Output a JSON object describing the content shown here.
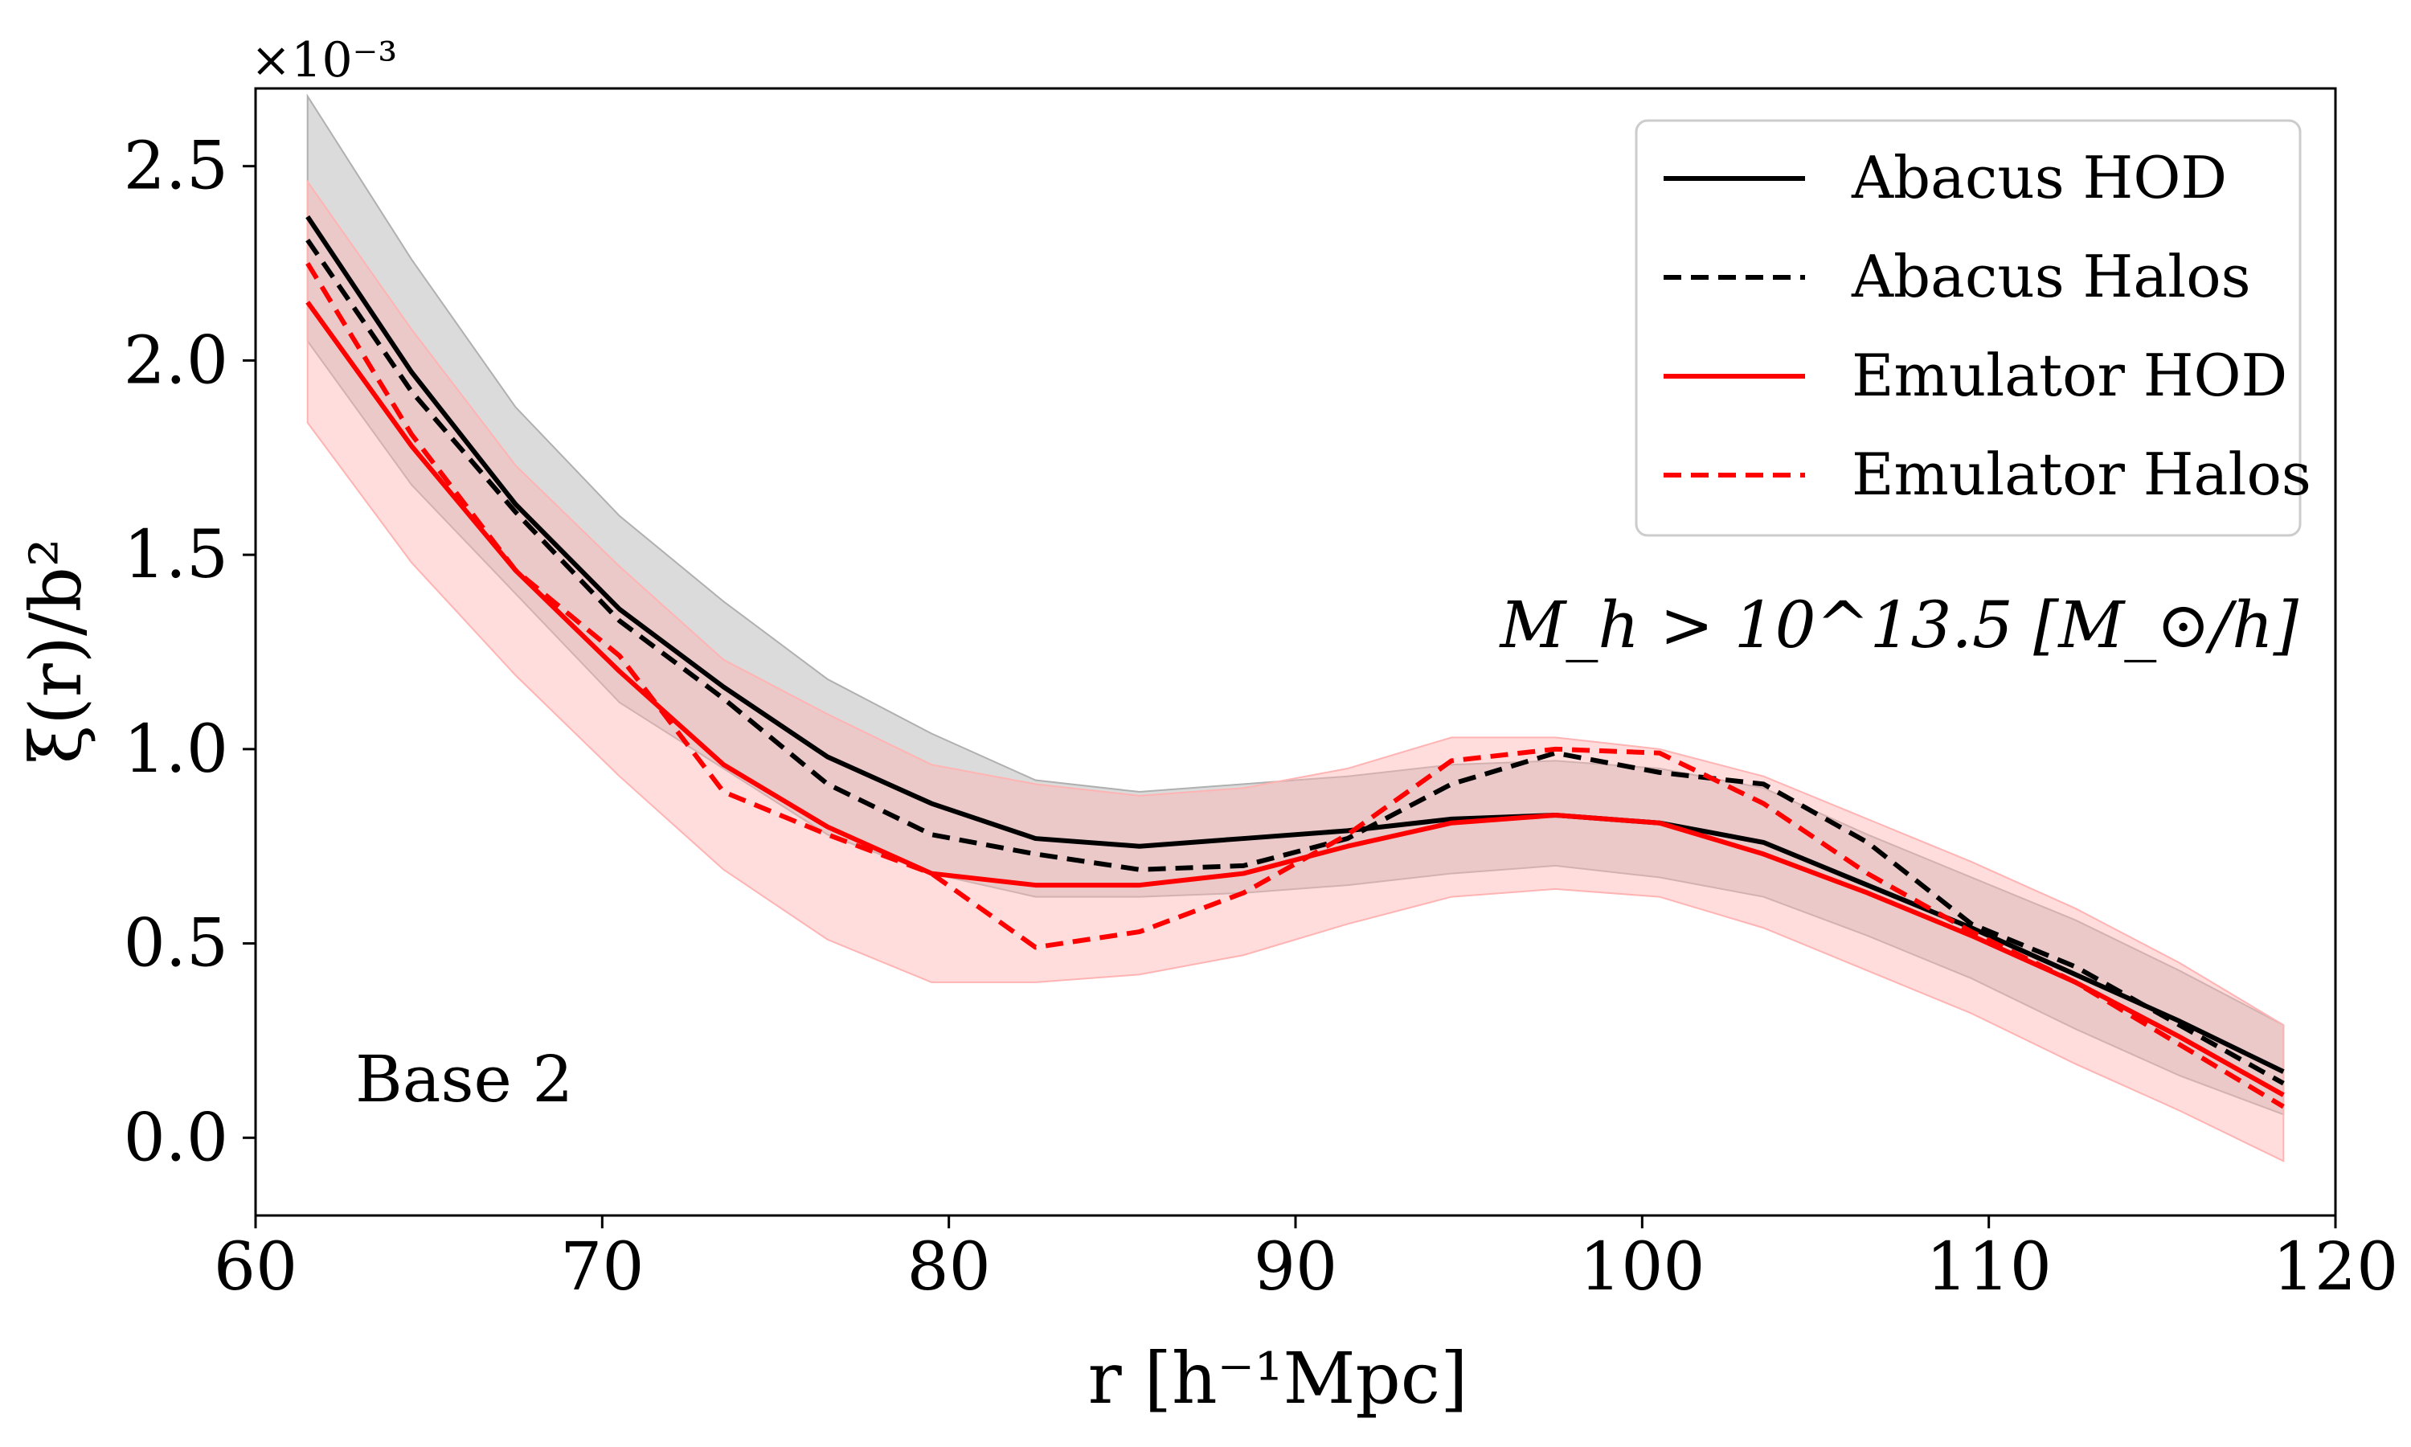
{
  "chart_data": {
    "type": "line",
    "xlabel": "r [h⁻¹Mpc]",
    "ylabel": "ξ(r)/b²",
    "y_scale_label": "×10⁻³",
    "xlim": [
      60,
      120
    ],
    "ylim": [
      -0.2,
      2.7
    ],
    "xticks": [
      60,
      70,
      80,
      90,
      100,
      110,
      120
    ],
    "xtick_labels": [
      "60",
      "70",
      "80",
      "90",
      "100",
      "110",
      "120"
    ],
    "yticks": [
      0.0,
      0.5,
      1.0,
      1.5,
      2.0,
      2.5
    ],
    "ytick_labels": [
      "0.0",
      "0.5",
      "1.0",
      "1.5",
      "2.0",
      "2.5"
    ],
    "grid": false,
    "legend_position": "top-right",
    "annotations": {
      "mass_cut": "M_h > 10^13.5 [M_⊙/h]",
      "sample": "Base 2"
    },
    "x": [
      61.5,
      64.5,
      67.5,
      70.5,
      73.5,
      76.5,
      79.5,
      82.5,
      85.5,
      88.5,
      91.5,
      94.5,
      97.5,
      100.5,
      103.5,
      106.5,
      109.5,
      112.5,
      115.5,
      118.5
    ],
    "series": [
      {
        "name": "Abacus HOD",
        "color": "#000000",
        "dash": "solid",
        "values": [
          2.37,
          1.97,
          1.63,
          1.36,
          1.16,
          0.98,
          0.86,
          0.77,
          0.75,
          0.77,
          0.79,
          0.82,
          0.83,
          0.81,
          0.76,
          0.65,
          0.54,
          0.42,
          0.3,
          0.17
        ],
        "band_lower": [
          2.05,
          1.68,
          1.4,
          1.12,
          0.95,
          0.78,
          0.68,
          0.62,
          0.62,
          0.63,
          0.65,
          0.68,
          0.7,
          0.67,
          0.62,
          0.52,
          0.41,
          0.28,
          0.16,
          0.06
        ],
        "band_upper": [
          2.68,
          2.26,
          1.88,
          1.6,
          1.38,
          1.18,
          1.04,
          0.92,
          0.89,
          0.91,
          0.93,
          0.96,
          0.97,
          0.95,
          0.9,
          0.78,
          0.67,
          0.56,
          0.43,
          0.29
        ],
        "band_color": "#b0b0b0"
      },
      {
        "name": "Abacus Halos",
        "color": "#000000",
        "dash": "dashed",
        "values": [
          2.31,
          1.92,
          1.61,
          1.33,
          1.13,
          0.91,
          0.78,
          0.73,
          0.69,
          0.7,
          0.77,
          0.91,
          0.99,
          0.94,
          0.91,
          0.76,
          0.55,
          0.44,
          0.29,
          0.14
        ]
      },
      {
        "name": "Emulator HOD",
        "color": "#ff0000",
        "dash": "solid",
        "values": [
          2.15,
          1.78,
          1.46,
          1.2,
          0.96,
          0.8,
          0.68,
          0.65,
          0.65,
          0.68,
          0.75,
          0.81,
          0.83,
          0.81,
          0.73,
          0.63,
          0.52,
          0.4,
          0.26,
          0.11
        ],
        "band_lower": [
          1.84,
          1.48,
          1.19,
          0.93,
          0.69,
          0.51,
          0.4,
          0.4,
          0.42,
          0.47,
          0.55,
          0.62,
          0.64,
          0.62,
          0.54,
          0.43,
          0.32,
          0.19,
          0.07,
          -0.06
        ],
        "band_upper": [
          2.46,
          2.08,
          1.73,
          1.47,
          1.23,
          1.09,
          0.96,
          0.91,
          0.88,
          0.9,
          0.95,
          1.03,
          1.03,
          1.0,
          0.93,
          0.82,
          0.71,
          0.59,
          0.45,
          0.29
        ],
        "band_color": "#ffb3b3"
      },
      {
        "name": "Emulator Halos",
        "color": "#ff0000",
        "dash": "dashed",
        "values": [
          2.25,
          1.81,
          1.46,
          1.24,
          0.89,
          0.78,
          0.68,
          0.49,
          0.53,
          0.63,
          0.78,
          0.97,
          1.0,
          0.99,
          0.86,
          0.68,
          0.53,
          0.4,
          0.24,
          0.08
        ]
      }
    ]
  }
}
